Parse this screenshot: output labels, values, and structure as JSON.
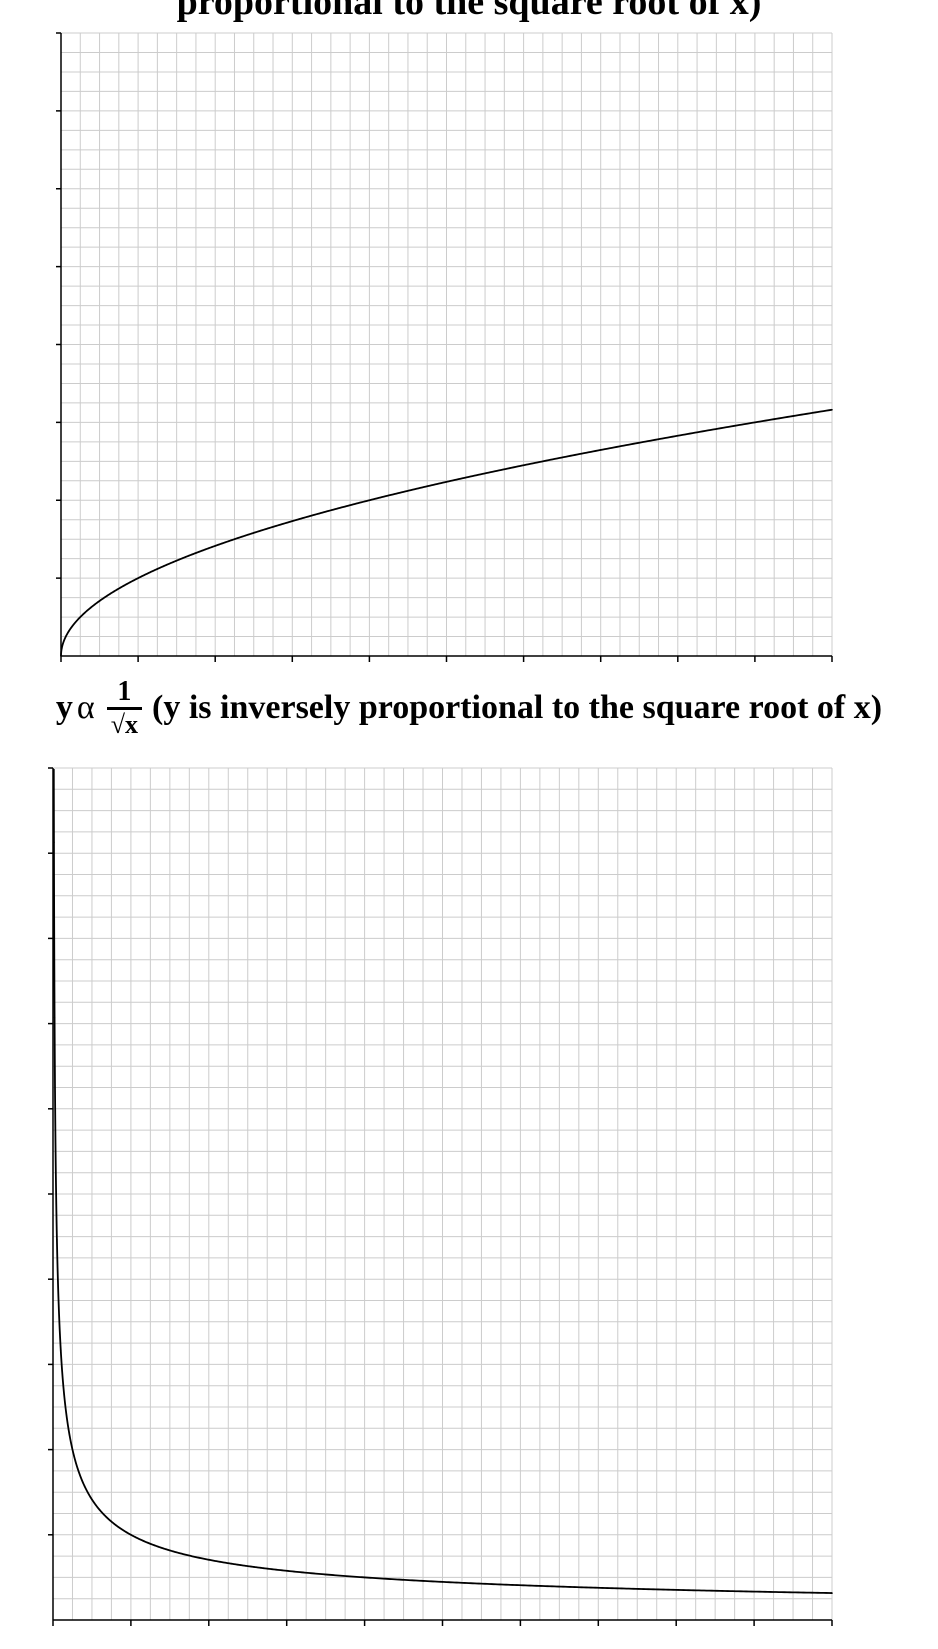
{
  "titles": {
    "chart1_title_text": "proportional to the square root of x)",
    "chart2_y": "y",
    "chart2_alpha": "α",
    "chart2_numerator": "1",
    "chart2_denominator": "√x",
    "chart2_text": "(y is inversely proportional to the square root of x)"
  },
  "colors": {
    "curve": "#000000",
    "grid": "#cccccc",
    "axis": "#000000"
  },
  "chart_data": [
    {
      "type": "line",
      "title": "proportional to the square root of x)",
      "function": "y = sqrt(x)",
      "xlim": [
        0,
        10
      ],
      "ylim": [
        0,
        8
      ],
      "grid": true,
      "x_major_ticks": 10,
      "y_major_ticks": 8,
      "grid_subdivisions": 4,
      "series": [
        {
          "x": [
            0,
            0.01,
            0.1,
            0.5,
            1,
            2,
            3,
            4,
            5,
            6,
            7,
            8,
            9,
            10
          ],
          "y": [
            0,
            0.1,
            0.316,
            0.707,
            1,
            1.414,
            1.732,
            2,
            2.236,
            2.449,
            2.646,
            2.828,
            3,
            3.162
          ]
        }
      ]
    },
    {
      "type": "line",
      "title": "y α 1/√x (y is inversely proportional to the square root of x)",
      "function": "y = 1/sqrt(x)",
      "xlim": [
        0,
        10
      ],
      "ylim": [
        0,
        10
      ],
      "grid": true,
      "x_major_ticks": 10,
      "y_major_ticks": 10,
      "grid_subdivisions": 4,
      "series": [
        {
          "x": [
            0.012,
            0.02,
            0.05,
            0.1,
            0.2,
            0.5,
            1,
            2,
            3,
            4,
            5,
            6,
            7,
            8,
            9,
            10
          ],
          "y": [
            9.13,
            7.07,
            4.47,
            3.162,
            2.236,
            1.414,
            1,
            0.707,
            0.577,
            0.5,
            0.447,
            0.408,
            0.378,
            0.354,
            0.333,
            0.316
          ]
        }
      ]
    }
  ]
}
